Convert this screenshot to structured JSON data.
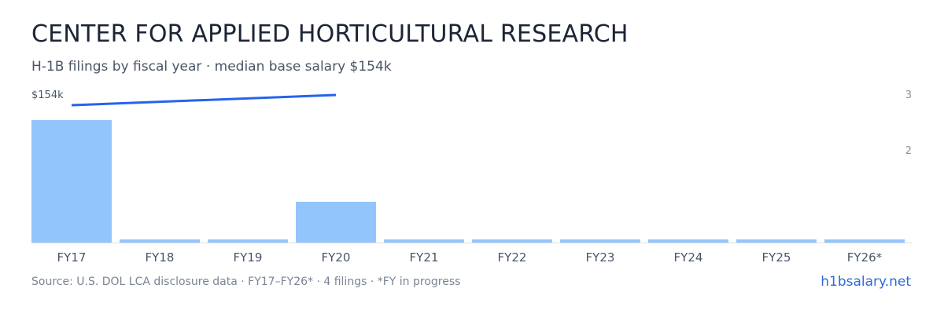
{
  "header": {
    "title": "CENTER FOR APPLIED HORTICULTURAL RESEARCH",
    "subtitle": "H-1B filings by fiscal year · median base salary $154k"
  },
  "footer": {
    "source": "Source: U.S. DOL LCA disclosure data · FY17–FY26* · 4 filings · *FY in progress",
    "brand": "h1bsalary.net"
  },
  "colors": {
    "bar": "#93c5fd",
    "line": "#2563eb",
    "axis": "#d9dde3",
    "tick_label": "#4a5566",
    "right_tick": "#8a93a3"
  },
  "chart_data": {
    "type": "bar",
    "categories": [
      "FY17",
      "FY18",
      "FY19",
      "FY20",
      "FY21",
      "FY22",
      "FY23",
      "FY24",
      "FY25",
      "FY26*"
    ],
    "series": [
      {
        "values": [
          3,
          0,
          0,
          1,
          0,
          0,
          0,
          0,
          0,
          0
        ]
      }
    ],
    "right_axis": {
      "ticks": [
        "2",
        "3"
      ],
      "ylim": [
        0,
        3
      ]
    },
    "line_series": {
      "label": "$154k",
      "x_from": "FY17",
      "x_to": "FY20"
    },
    "grid": false,
    "legend": "none"
  }
}
